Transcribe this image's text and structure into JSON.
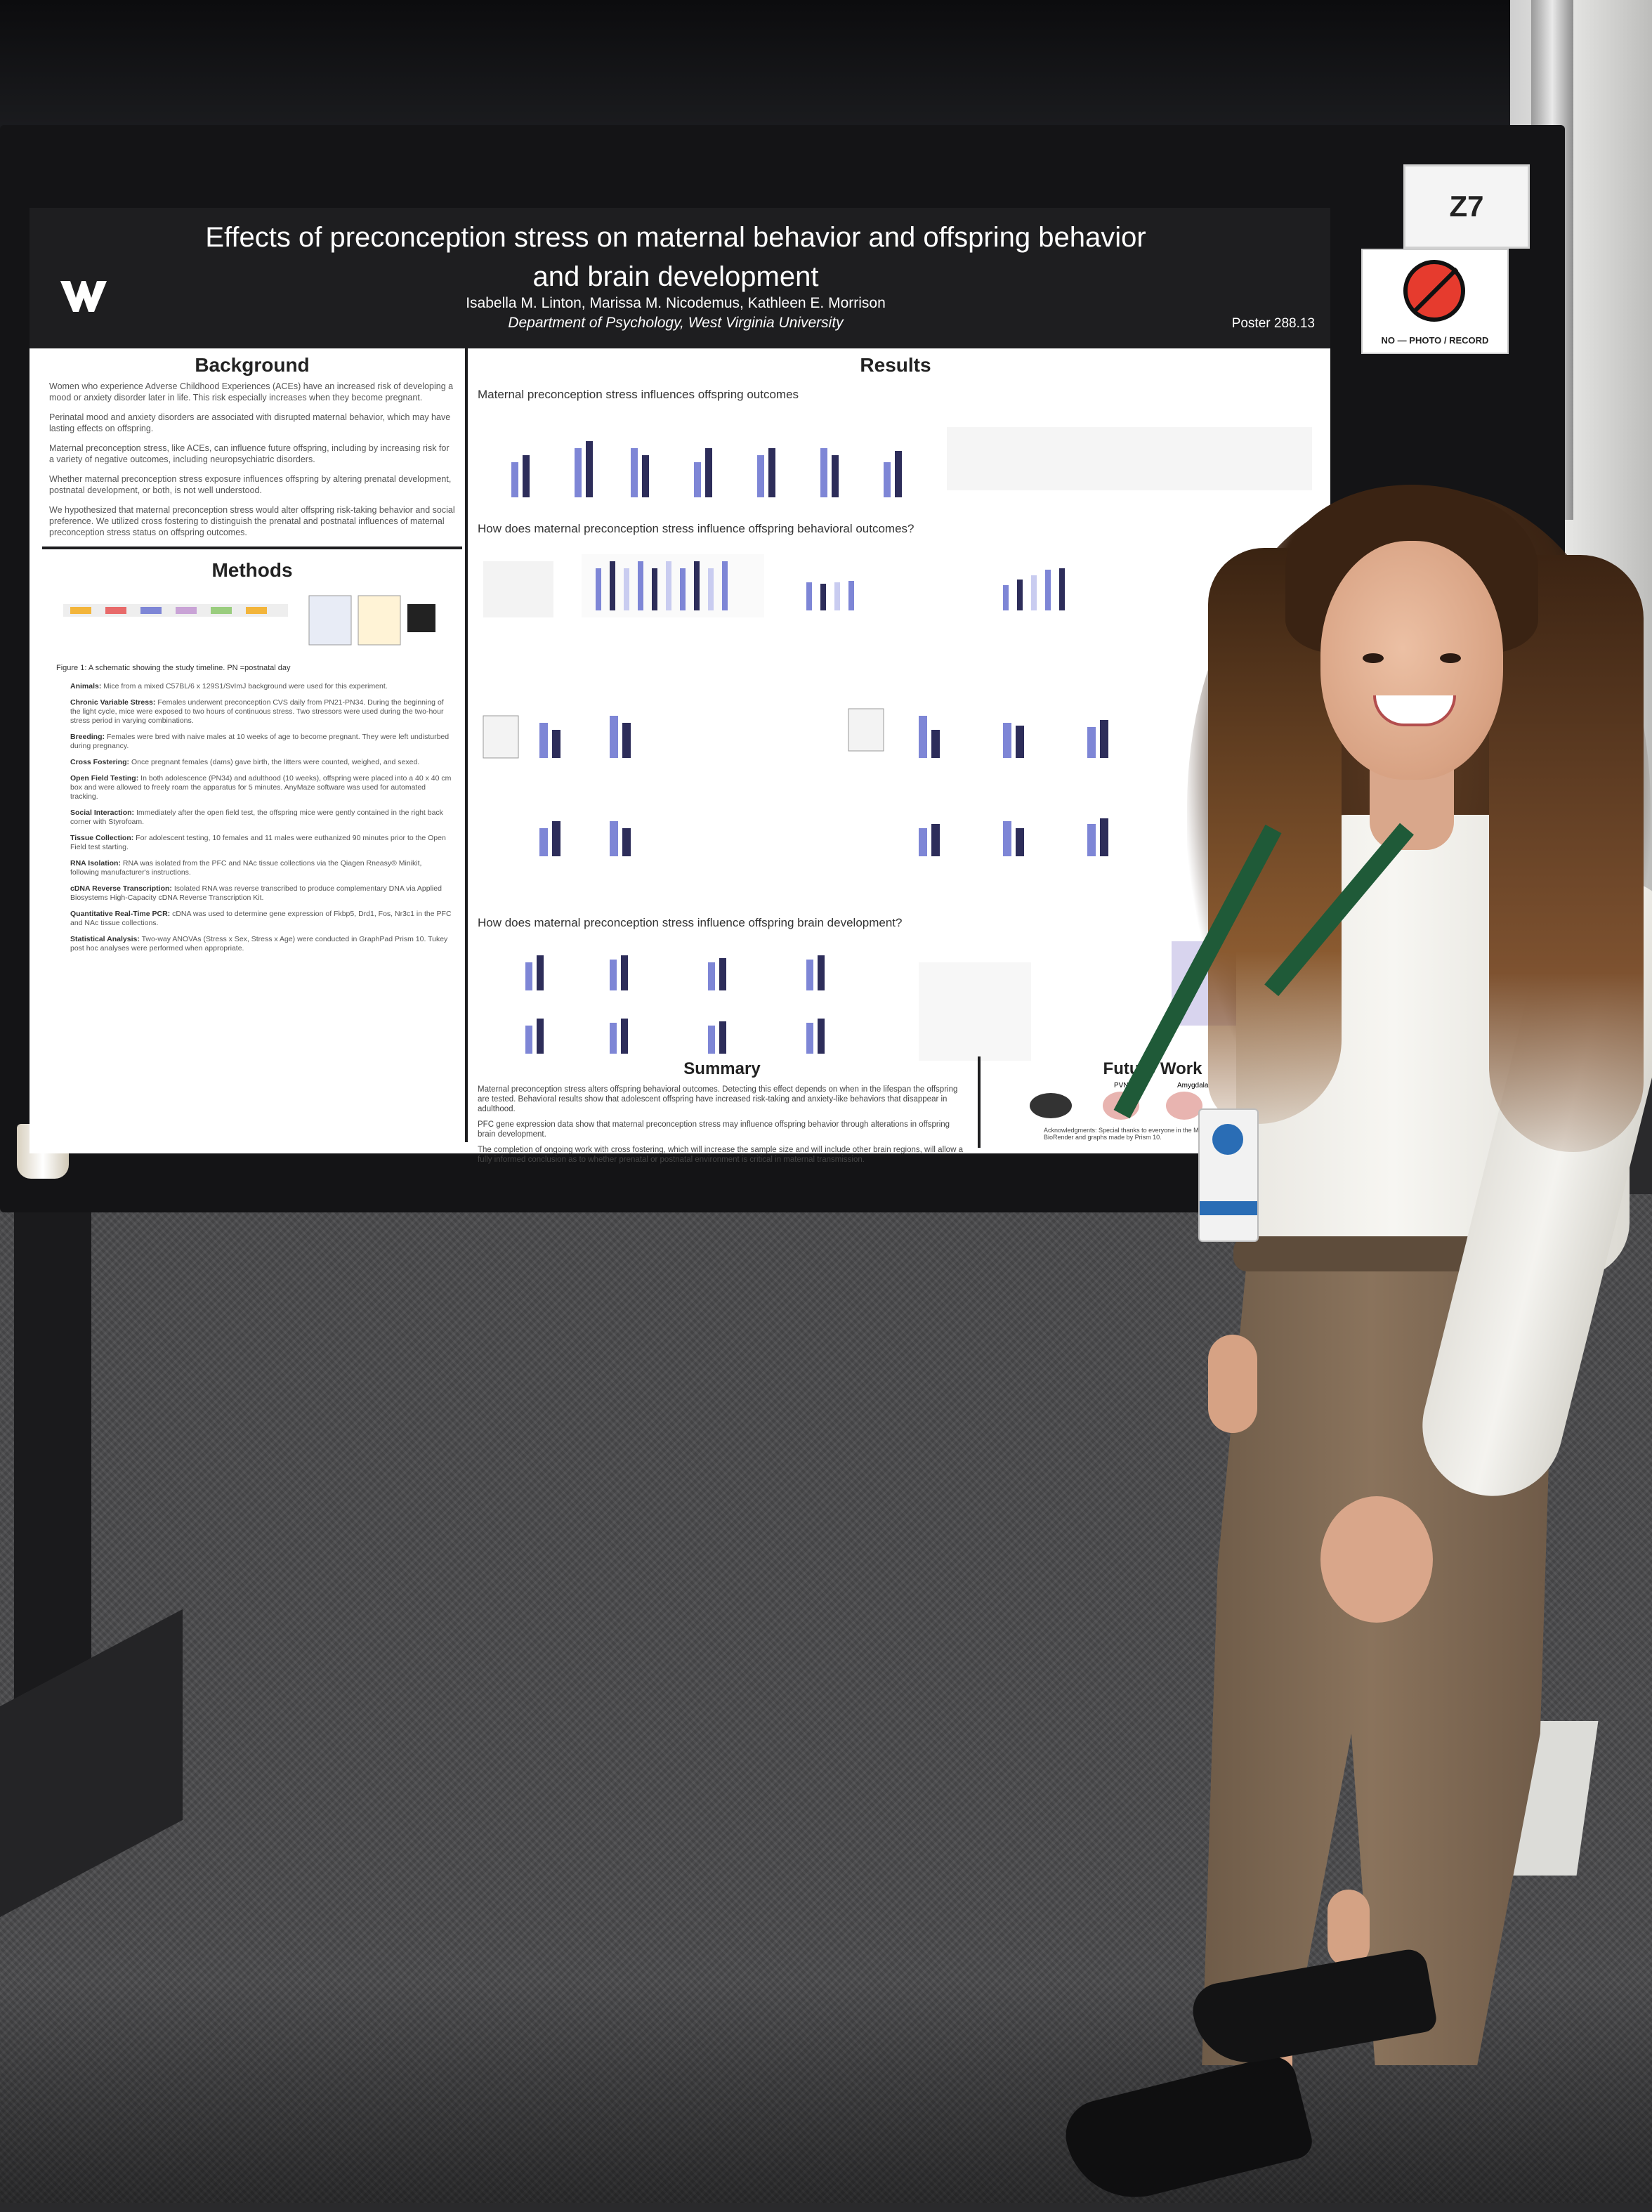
{
  "booth": {
    "number": "Z7",
    "no_photo_label": "NO — PHOTO / RECORD"
  },
  "poster": {
    "title": "Effects of preconception stress on maternal behavior and offspring behavior and brain development",
    "authors": "Isabella M. Linton, Marissa M. Nicodemus, Kathleen E. Morrison",
    "affiliation": "Department of Psychology, West Virginia University",
    "poster_number": "Poster 288.13",
    "background": {
      "heading": "Background",
      "paragraphs": [
        "Women who experience Adverse Childhood Experiences (ACEs) have an increased risk of developing a mood or anxiety disorder later in life. This risk especially increases when they become pregnant.",
        "Perinatal mood and anxiety disorders are associated with disrupted maternal behavior, which may have lasting effects on offspring.",
        "Maternal preconception stress, like ACEs, can influence future offspring, including by increasing risk for a variety of negative outcomes, including neuropsychiatric disorders.",
        "Whether maternal preconception stress exposure influences offspring by altering prenatal development, postnatal development, or both, is not well understood.",
        "We hypothesized that maternal preconception stress would alter offspring risk-taking behavior and social preference. We utilized cross fostering to distinguish the prenatal and postnatal influences of maternal preconception stress status on offspring outcomes."
      ]
    },
    "methods": {
      "heading": "Methods",
      "figure_caption": "Figure 1: A schematic showing the study timeline. PN =postnatal day",
      "items": [
        {
          "label": "Animals:",
          "text": "Mice from a mixed C57BL/6 x 129S1/SvImJ background were used for this experiment."
        },
        {
          "label": "Chronic Variable Stress:",
          "text": "Females underwent preconception CVS daily from PN21-PN34. During the beginning of the light cycle, mice were exposed to two hours of continuous stress. Two stressors were used during the two-hour stress period in varying combinations."
        },
        {
          "label": "Breeding:",
          "text": "Females were bred with naive males at 10 weeks of age to become pregnant. They were left undisturbed during pregnancy."
        },
        {
          "label": "Cross Fostering:",
          "text": "Once pregnant females (dams) gave birth, the litters were counted, weighed, and sexed."
        },
        {
          "label": "Open Field Testing:",
          "text": "In both adolescence (PN34) and adulthood (10 weeks), offspring were placed into a 40 x 40 cm box and were allowed to freely roam the apparatus for 5 minutes. AnyMaze software was used for automated tracking."
        },
        {
          "label": "Social Interaction:",
          "text": "Immediately after the open field test, the offspring mice were gently contained in the right back corner with Styrofoam."
        },
        {
          "label": "Tissue Collection:",
          "text": "For adolescent testing, 10 females and 11 males were euthanized 90 minutes prior to the Open Field test starting."
        },
        {
          "label": "RNA Isolation:",
          "text": "RNA was isolated from the PFC and NAc tissue collections via the Qiagen Rneasy® Minikit, following manufacturer's instructions."
        },
        {
          "label": "cDNA Reverse Transcription:",
          "text": "Isolated RNA was reverse transcribed to produce complementary DNA via Applied Biosystems High-Capacity cDNA Reverse Transcription Kit."
        },
        {
          "label": "Quantitative Real-Time PCR:",
          "text": "cDNA was used to determine gene expression of Fkbp5, Drd1, Fos, Nr3c1 in the PFC and NAc tissue collections."
        },
        {
          "label": "Statistical Analysis:",
          "text": "Two-way ANOVAs (Stress x Sex, Stress x Age) were conducted in GraphPad Prism 10. Tukey post hoc analyses were performed when appropriate."
        }
      ]
    },
    "results": {
      "heading": "Results",
      "subheads": [
        "Maternal preconception stress influences offspring outcomes",
        "How does maternal preconception stress influence offspring behavioral outcomes?",
        "How does maternal preconception stress influence offspring brain development?"
      ]
    },
    "summary": {
      "heading": "Summary",
      "paragraphs": [
        "Maternal preconception stress alters offspring behavioral outcomes. Detecting this effect depends on when in the lifespan the offspring are tested. Behavioral results show that adolescent offspring have increased risk-taking and anxiety-like behaviors that disappear in adulthood.",
        "PFC gene expression data show that maternal preconception stress may influence offspring behavior through alterations in offspring brain development.",
        "The completion of ongoing work with cross fostering, which will increase the sample size and will include other brain regions, will allow a fully informed conclusion as to whether prenatal or postnatal environment is critical in maternal transmission."
      ]
    },
    "future_work": {
      "heading": "Future Work",
      "labels": [
        "PVN",
        "Amygdala"
      ],
      "acknowledgments": "Acknowledgments: Special thanks to everyone in the Morrison lab. Schematics made by BioRender and graphs made by Prism 10."
    }
  },
  "colors": {
    "header": "#1e1e20",
    "bar_primary": "#7e86d6",
    "bar_dark": "#2d2d5a",
    "bar_light": "#c9ccf0"
  }
}
